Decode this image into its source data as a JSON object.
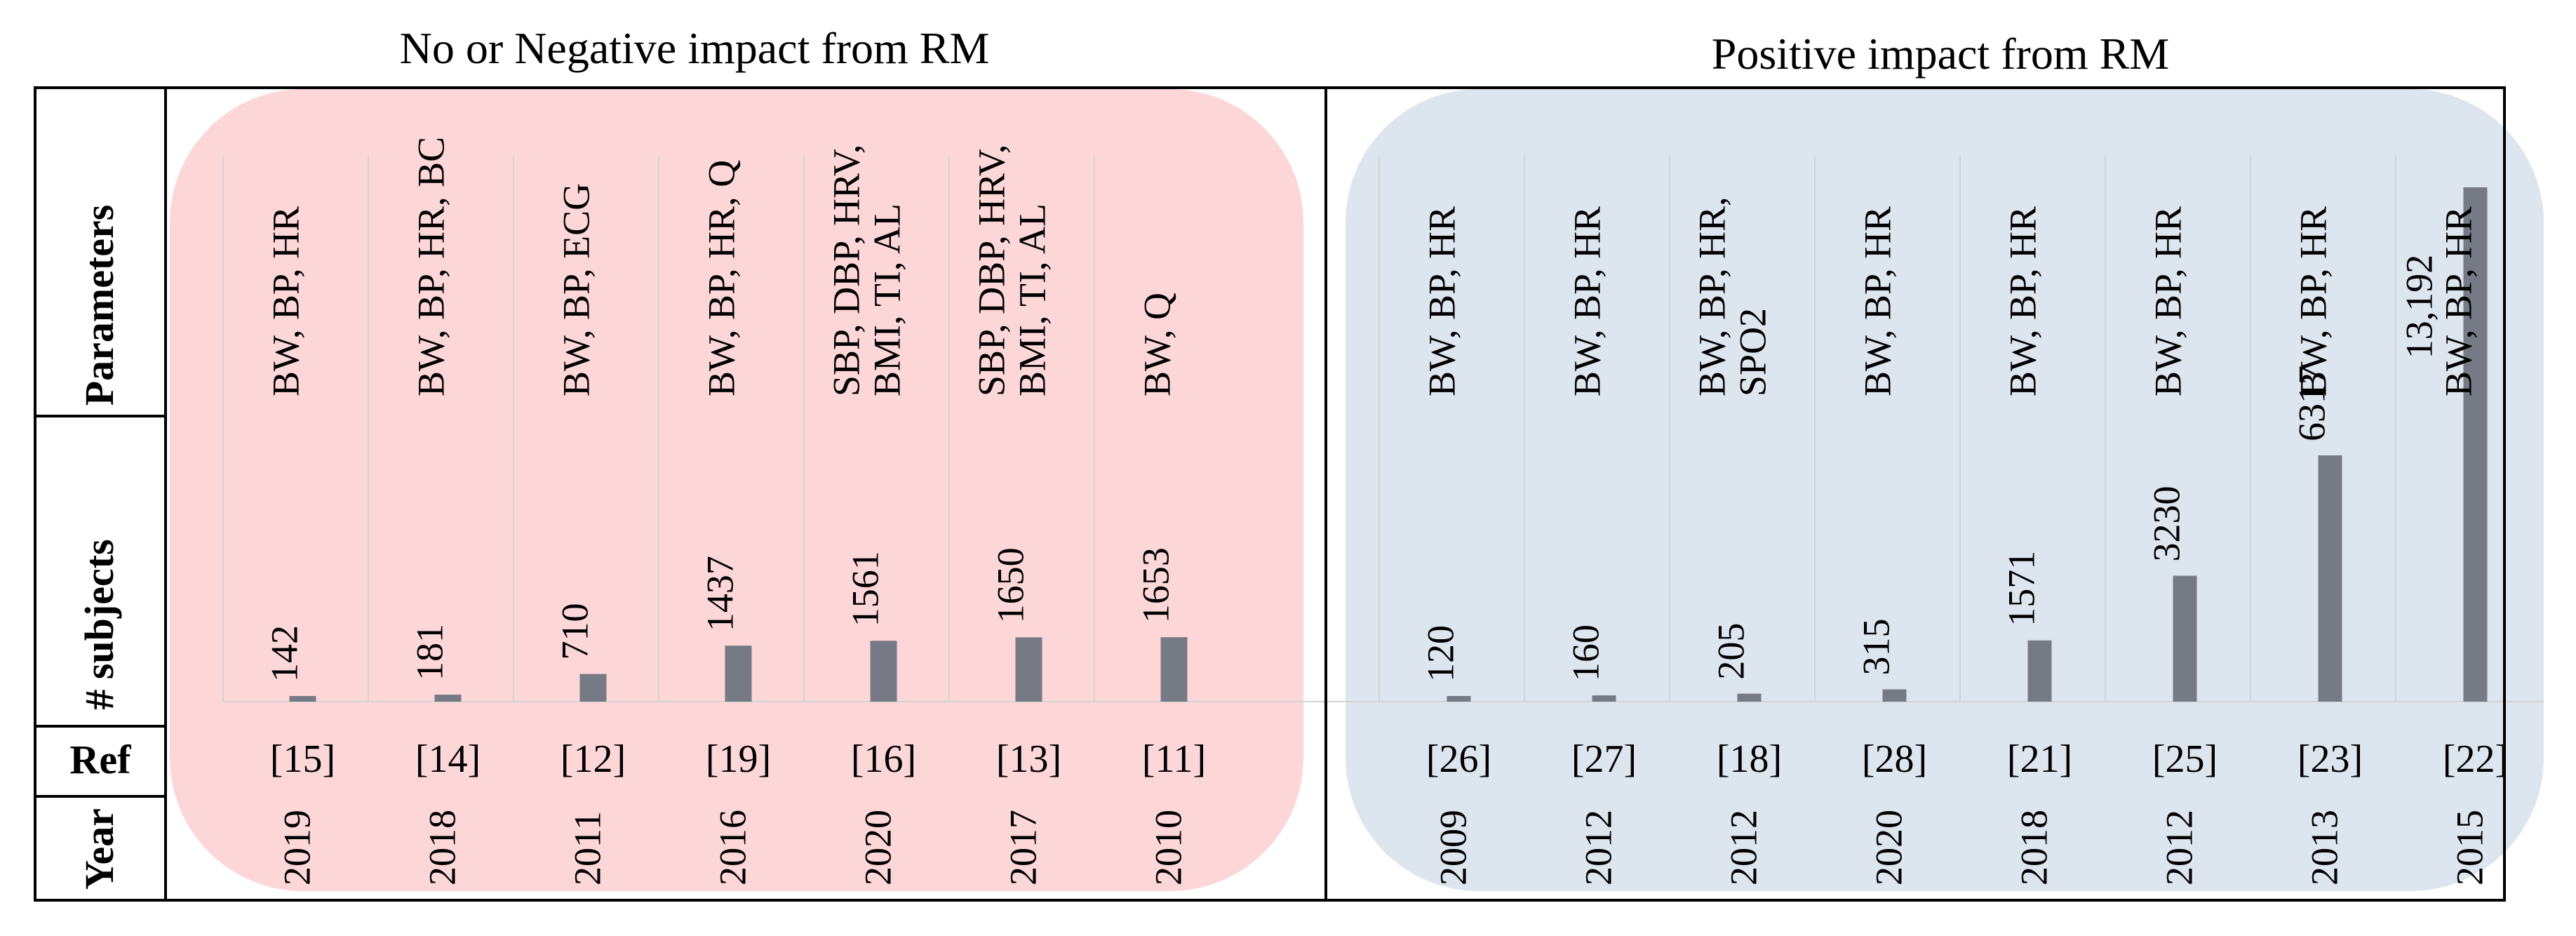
{
  "panel_titles": {
    "negative": "No or Negative impact from RM",
    "positive": "Positive impact from RM"
  },
  "row_labels": {
    "parameters": "Parameters",
    "subjects": "# subjects",
    "ref": "Ref",
    "year": "Year"
  },
  "colors": {
    "negative_bg": "#fdd7d7",
    "positive_bg": "#dde5ee",
    "bar": "#767a84",
    "gridline": "#d4d4d4",
    "border": "#000000"
  },
  "chart_data": {
    "type": "bar",
    "groups": [
      {
        "name": "No or Negative impact from RM",
        "studies": [
          {
            "parameters": [
              "BW, BP, HR"
            ],
            "subjects": 142,
            "subjects_label": "142",
            "ref": "[15]",
            "year": "2019"
          },
          {
            "parameters": [
              "BW, BP, HR, BC"
            ],
            "subjects": 181,
            "subjects_label": "181",
            "ref": "[14]",
            "year": "2018"
          },
          {
            "parameters": [
              "BW, BP, ECG"
            ],
            "subjects": 710,
            "subjects_label": "710",
            "ref": "[12]",
            "year": "2011"
          },
          {
            "parameters": [
              "BW, BP, HR, Q"
            ],
            "subjects": 1437,
            "subjects_label": "1437",
            "ref": "[19]",
            "year": "2016"
          },
          {
            "parameters": [
              "SBP, DBP, HRV,",
              "BMI, TI, AL"
            ],
            "subjects": 1561,
            "subjects_label": "1561",
            "ref": "[16]",
            "year": "2020"
          },
          {
            "parameters": [
              "SBP, DBP, HRV,",
              "BMI, TI, AL"
            ],
            "subjects": 1650,
            "subjects_label": "1650",
            "ref": "[13]",
            "year": "2017"
          },
          {
            "parameters": [
              "BW, Q"
            ],
            "subjects": 1653,
            "subjects_label": "1653",
            "ref": "[11]",
            "year": "2010"
          }
        ]
      },
      {
        "name": "Positive impact from RM",
        "studies": [
          {
            "parameters": [
              "BW, BP, HR"
            ],
            "subjects": 120,
            "subjects_label": "120",
            "ref": "[26]",
            "year": "2009"
          },
          {
            "parameters": [
              "BW, BP, HR"
            ],
            "subjects": 160,
            "subjects_label": "160",
            "ref": "[27]",
            "year": "2012"
          },
          {
            "parameters": [
              "BW, BP, HR,",
              "SPO2"
            ],
            "subjects": 205,
            "subjects_label": "205",
            "ref": "[18]",
            "year": "2012"
          },
          {
            "parameters": [
              "BW, BP, HR"
            ],
            "subjects": 315,
            "subjects_label": "315",
            "ref": "[28]",
            "year": "2020"
          },
          {
            "parameters": [
              "BW, BP, HR"
            ],
            "subjects": 1571,
            "subjects_label": "1571",
            "ref": "[21]",
            "year": "2018"
          },
          {
            "parameters": [
              "BW, BP, HR"
            ],
            "subjects": 3230,
            "subjects_label": "3230",
            "ref": "[25]",
            "year": "2012"
          },
          {
            "parameters": [
              "BW, BP, HR"
            ],
            "subjects": 6317,
            "subjects_label": "6317",
            "ref": "[23]",
            "year": "2013"
          },
          {
            "parameters": [
              "BW, BP, HR"
            ],
            "subjects": 13192,
            "subjects_label": "13,192",
            "ref": "[22]",
            "year": "2015"
          }
        ]
      }
    ],
    "ylim": [
      0,
      13192
    ]
  }
}
